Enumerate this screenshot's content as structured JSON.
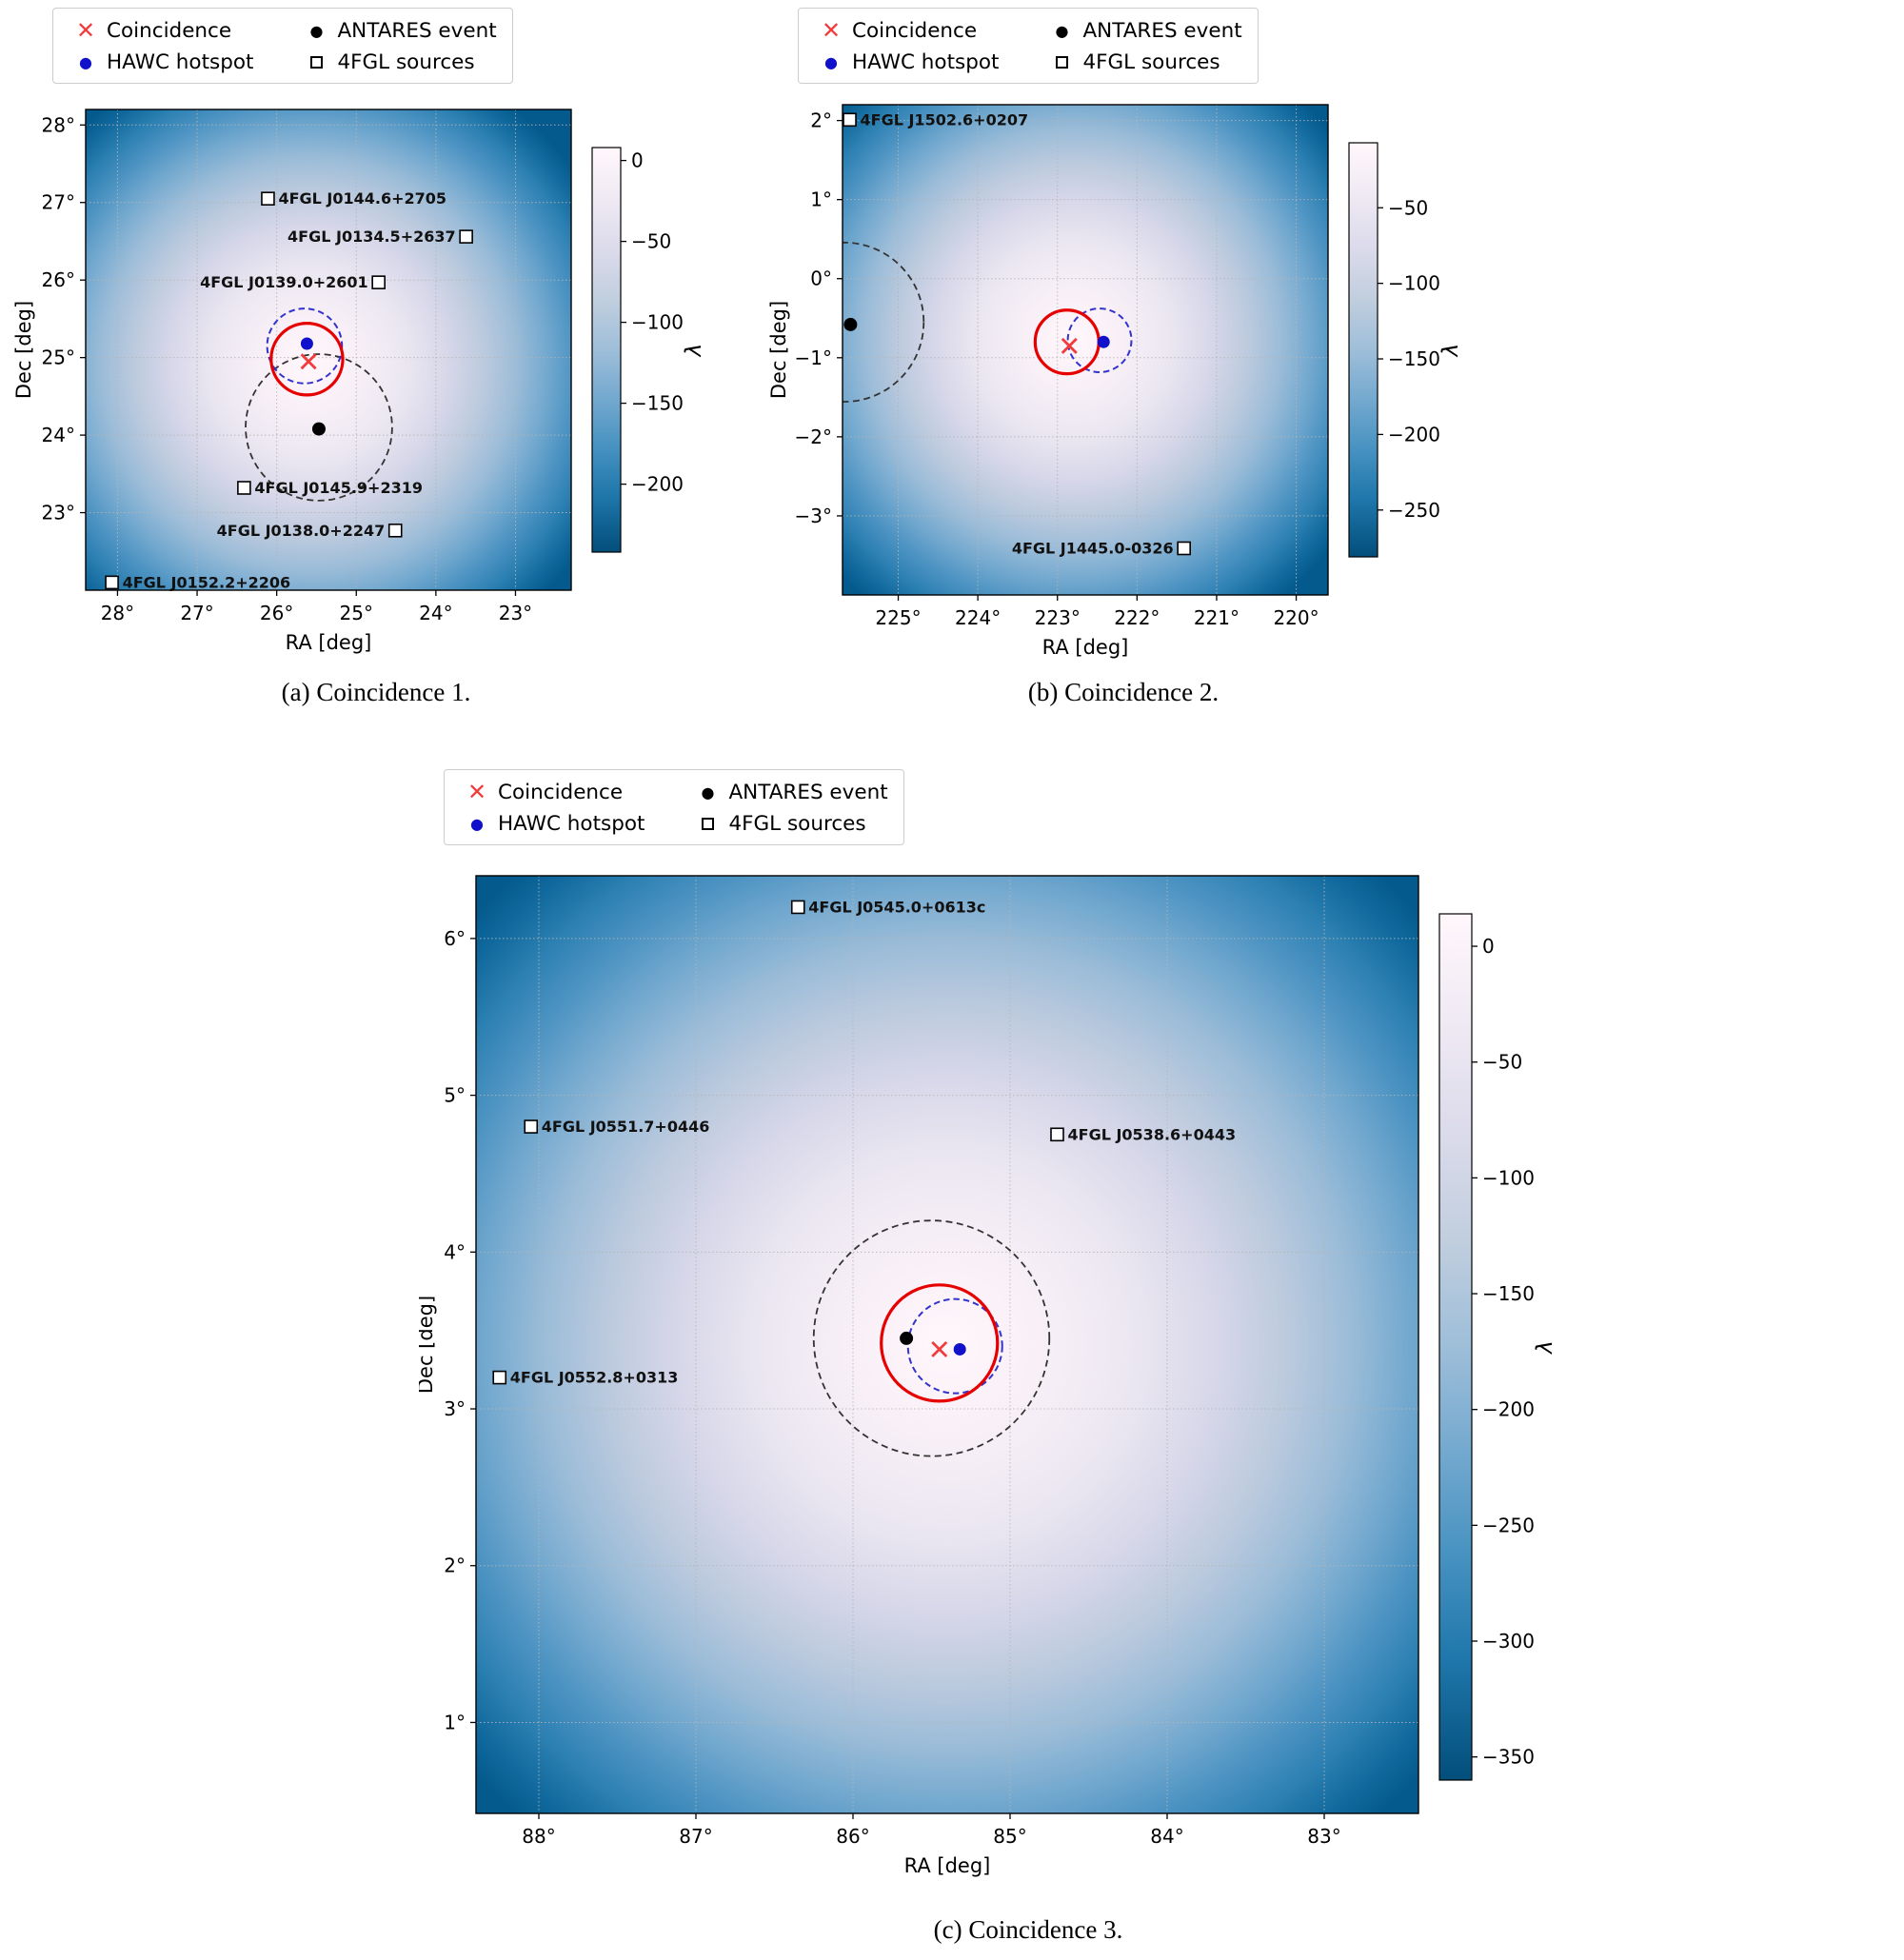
{
  "figure": {
    "legend": {
      "items": [
        {
          "id": "coincidence",
          "label": "Coincidence",
          "marker": "red-x",
          "color": "#f23b3b"
        },
        {
          "id": "hawc-hotspot",
          "label": "HAWC hotspot",
          "marker": "blue-dot",
          "color": "#1111cc"
        },
        {
          "id": "antares-event",
          "label": "ANTARES event",
          "marker": "black-dot",
          "color": "#000000"
        },
        {
          "id": "4fgl-sources",
          "label": "4FGL sources",
          "marker": "open-square",
          "color": "#000000"
        }
      ]
    },
    "colors": {
      "coincidence_x": "#f23b3b",
      "red_circle": "#e60000",
      "hawc_dot": "#1111cc",
      "blue_circle": "#3333cc",
      "antares_black": "#000000",
      "black_circle": "#333333",
      "grid": "#b5b5b5",
      "cmap_light": "#fff7fb",
      "cmap_dark": "#045a8d"
    }
  },
  "chart_data": [
    {
      "id": "a",
      "type": "heatmap",
      "caption": "(a) Coincidence 1.",
      "xlabel": "RA [deg]",
      "ylabel": "Dec [deg]",
      "colorbar_label": "λ",
      "x_ticks_deg": [
        28,
        27,
        26,
        25,
        24,
        23
      ],
      "y_ticks_deg": [
        23,
        24,
        25,
        26,
        27,
        28
      ],
      "x_range_left_to_right_deg": [
        28.4,
        22.3
      ],
      "y_range_top_to_bottom_deg": [
        28.2,
        22.0
      ],
      "colorbar_ticks": [
        0,
        -50,
        -100,
        -150,
        -200
      ],
      "colorbar_value_range_top_to_bottom": [
        8,
        -242
      ],
      "gradient_center": {
        "fx": 0.46,
        "fy": 0.53
      },
      "markers": {
        "coincidence_x": {
          "ra": 25.6,
          "dec": 24.95
        },
        "hawc_hotspot": {
          "ra": 25.62,
          "dec": 25.18
        },
        "antares_event": {
          "ra": 25.47,
          "dec": 24.08
        }
      },
      "circles": [
        {
          "kind": "black-dashed",
          "ra": 25.47,
          "dec": 24.1,
          "radius_deg": 0.92
        },
        {
          "kind": "blue-dashed",
          "ra": 25.65,
          "dec": 25.15,
          "radius_deg": 0.47
        },
        {
          "kind": "red-solid",
          "ra": 25.62,
          "dec": 24.98,
          "radius_deg": 0.45
        }
      ],
      "sources_4fgl": [
        {
          "name": "4FGL J0144.6+2705",
          "ra": 26.11,
          "dec": 27.05,
          "label_side": "right"
        },
        {
          "name": "4FGL J0134.5+2637",
          "ra": 23.62,
          "dec": 26.56,
          "label_side": "left"
        },
        {
          "name": "4FGL J0139.0+2601",
          "ra": 24.72,
          "dec": 25.97,
          "label_side": "left"
        },
        {
          "name": "4FGL J0145.9+2319",
          "ra": 26.41,
          "dec": 23.32,
          "label_side": "right"
        },
        {
          "name": "4FGL J0138.0+2247",
          "ra": 24.51,
          "dec": 22.77,
          "label_side": "left"
        },
        {
          "name": "4FGL J0152.2+2206",
          "ra": 28.07,
          "dec": 22.1,
          "label_side": "right"
        }
      ]
    },
    {
      "id": "b",
      "type": "heatmap",
      "caption": "(b) Coincidence 2.",
      "xlabel": "RA [deg]",
      "ylabel": "Dec [deg]",
      "colorbar_label": "λ",
      "x_ticks_deg": [
        225,
        224,
        223,
        222,
        221,
        220
      ],
      "y_ticks_deg": [
        2,
        1,
        0,
        -1,
        -2,
        -3
      ],
      "x_range_left_to_right_deg": [
        225.7,
        219.6
      ],
      "y_range_top_to_bottom_deg": [
        2.2,
        -4.0
      ],
      "colorbar_ticks": [
        -50,
        -100,
        -150,
        -200,
        -250
      ],
      "colorbar_value_range_top_to_bottom": [
        -7,
        -281
      ],
      "gradient_center": {
        "fx": 0.475,
        "fy": 0.48
      },
      "markers": {
        "coincidence_x": {
          "ra": 222.85,
          "dec": -0.85
        },
        "hawc_hotspot": {
          "ra": 222.42,
          "dec": -0.8
        },
        "antares_event": {
          "ra": 225.6,
          "dec": -0.58
        }
      },
      "circles": [
        {
          "kind": "black-dashed",
          "ra": 225.68,
          "dec": -0.55,
          "radius_deg": 1.0
        },
        {
          "kind": "blue-dashed",
          "ra": 222.47,
          "dec": -0.78,
          "radius_deg": 0.4
        },
        {
          "kind": "red-solid",
          "ra": 222.88,
          "dec": -0.8,
          "radius_deg": 0.4
        }
      ],
      "sources_4fgl": [
        {
          "name": "4FGL J1502.6+0207",
          "ra": 225.61,
          "dec": 2.01,
          "label_side": "right"
        },
        {
          "name": "4FGL J1445.0-0326",
          "ra": 221.41,
          "dec": -3.41,
          "label_side": "left"
        }
      ]
    },
    {
      "id": "c",
      "type": "heatmap",
      "caption": "(c) Coincidence 3.",
      "xlabel": "RA [deg]",
      "ylabel": "Dec [deg]",
      "colorbar_label": "λ",
      "x_ticks_deg": [
        88,
        87,
        86,
        85,
        84,
        83
      ],
      "y_ticks_deg": [
        1,
        2,
        3,
        4,
        5,
        6
      ],
      "x_range_left_to_right_deg": [
        88.4,
        82.4
      ],
      "y_range_top_to_bottom_deg": [
        6.4,
        0.42
      ],
      "colorbar_ticks": [
        0,
        -50,
        -100,
        -150,
        -200,
        -250,
        -300,
        -350
      ],
      "colorbar_value_range_top_to_bottom": [
        14,
        -360
      ],
      "gradient_center": {
        "fx": 0.5,
        "fy": 0.5
      },
      "markers": {
        "coincidence_x": {
          "ra": 85.45,
          "dec": 3.38
        },
        "hawc_hotspot": {
          "ra": 85.32,
          "dec": 3.38
        },
        "antares_event": {
          "ra": 85.66,
          "dec": 3.45
        }
      },
      "circles": [
        {
          "kind": "black-dashed",
          "ra": 85.5,
          "dec": 3.45,
          "radius_deg": 0.75
        },
        {
          "kind": "blue-dashed",
          "ra": 85.35,
          "dec": 3.4,
          "radius_deg": 0.3
        },
        {
          "kind": "red-solid",
          "ra": 85.45,
          "dec": 3.42,
          "radius_deg": 0.37
        }
      ],
      "sources_4fgl": [
        {
          "name": "4FGL J0545.0+0613c",
          "ra": 86.35,
          "dec": 6.2,
          "label_side": "right"
        },
        {
          "name": "4FGL J0551.7+0446",
          "ra": 88.05,
          "dec": 4.8,
          "label_side": "right"
        },
        {
          "name": "4FGL J0538.6+0443",
          "ra": 84.7,
          "dec": 4.75,
          "label_side": "right"
        },
        {
          "name": "4FGL J0552.8+0313",
          "ra": 88.25,
          "dec": 3.2,
          "label_side": "right"
        }
      ]
    }
  ]
}
